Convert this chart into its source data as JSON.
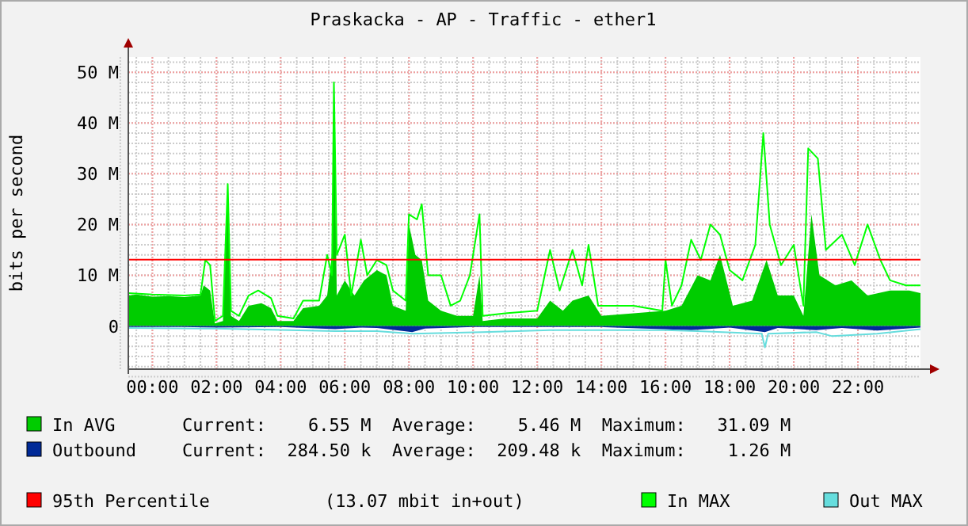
{
  "chart_data": {
    "type": "area",
    "title": "Praskacka - AP - Traffic - ether1",
    "ylabel": "bits per second",
    "xlim": [
      -0.75,
      23.95
    ],
    "xticks": [
      {
        "value": 0,
        "label": "00:00"
      },
      {
        "value": 2,
        "label": "02:00"
      },
      {
        "value": 4,
        "label": "04:00"
      },
      {
        "value": 6,
        "label": "06:00"
      },
      {
        "value": 8,
        "label": "08:00"
      },
      {
        "value": 10,
        "label": "10:00"
      },
      {
        "value": 12,
        "label": "12:00"
      },
      {
        "value": 14,
        "label": "14:00"
      },
      {
        "value": 16,
        "label": "16:00"
      },
      {
        "value": 18,
        "label": "18:00"
      },
      {
        "value": 20,
        "label": "20:00"
      },
      {
        "value": 22,
        "label": "22:00"
      }
    ],
    "ylim": [
      -8.5,
      53
    ],
    "yticks": [
      0,
      {
        "value": 10,
        "label": "10 M"
      },
      {
        "value": 20,
        "label": "20 M"
      },
      {
        "value": 30,
        "label": "30 M"
      },
      {
        "value": 40,
        "label": "40 M"
      },
      {
        "value": 50,
        "label": "50 M"
      }
    ],
    "grid": true,
    "legend": "bottom",
    "series": [
      {
        "name": "In AVG",
        "color": "#00cc00",
        "x": [
          -0.75,
          -0.5,
          0,
          0.5,
          1,
          1.5,
          1.6,
          1.8,
          1.95,
          2.2,
          2.35,
          2.45,
          2.7,
          3.0,
          3.4,
          3.7,
          3.9,
          4.4,
          4.7,
          5.2,
          5.45,
          5.6,
          5.66,
          5.75,
          6.0,
          6.3,
          6.6,
          7.0,
          7.3,
          7.5,
          7.9,
          8.0,
          8.2,
          8.4,
          8.6,
          9.0,
          9.5,
          10.0,
          10.2,
          10.3,
          11.0,
          12.0,
          12.4,
          12.8,
          13.1,
          13.6,
          14.0,
          15.0,
          16.0,
          16.5,
          17.0,
          17.4,
          17.7,
          18.1,
          18.7,
          19.15,
          19.5,
          20.0,
          20.3,
          20.55,
          20.8,
          21.3,
          21.8,
          22.3,
          23.0,
          23.6,
          23.95
        ],
        "values": [
          6,
          6.2,
          5.8,
          5.9,
          5.7,
          6,
          8,
          7,
          0.5,
          1,
          28,
          2,
          1,
          4,
          4.5,
          3.5,
          1,
          1,
          3.5,
          4,
          6,
          14,
          48,
          6,
          9,
          6,
          9,
          11,
          10,
          4,
          3,
          20,
          14,
          13,
          5,
          3,
          2,
          2,
          10,
          1,
          1.5,
          1.5,
          5,
          3,
          5,
          6,
          2,
          2.5,
          3,
          4,
          10,
          9,
          14,
          4,
          5,
          13,
          6,
          6,
          2,
          22,
          10,
          8,
          9,
          6,
          7,
          7,
          6.5
        ]
      },
      {
        "name": "Outbound",
        "color": "#002a97",
        "x": [
          -0.75,
          1,
          2,
          4,
          5.7,
          6.5,
          7.0,
          8.1,
          8.5,
          10,
          12,
          14,
          16.8,
          18,
          19.1,
          19.5,
          20.7,
          21.5,
          22.6,
          23.95
        ],
        "values": [
          -0.2,
          -0.2,
          -0.3,
          -0.2,
          -0.6,
          -0.3,
          -0.4,
          -1.2,
          -0.5,
          -0.2,
          -0.2,
          -0.2,
          -0.8,
          -0.3,
          -1.2,
          -0.4,
          -0.8,
          -0.4,
          -0.9,
          -0.3
        ]
      },
      {
        "name": "In MAX",
        "type": "line",
        "color": "#00ff00",
        "x": [
          -0.75,
          0,
          1,
          1.5,
          1.65,
          1.8,
          1.95,
          2.2,
          2.35,
          2.45,
          2.7,
          3.0,
          3.3,
          3.7,
          3.9,
          4.4,
          4.7,
          5.2,
          5.45,
          5.6,
          5.66,
          5.75,
          6.0,
          6.2,
          6.5,
          6.7,
          7.0,
          7.3,
          7.5,
          7.9,
          8.0,
          8.25,
          8.4,
          8.6,
          9.0,
          9.3,
          9.6,
          9.9,
          10.2,
          10.3,
          11.0,
          12.0,
          12.4,
          12.7,
          13.1,
          13.4,
          13.6,
          13.9,
          15.0,
          15.9,
          16.0,
          16.2,
          16.5,
          16.8,
          17.1,
          17.4,
          17.7,
          18.0,
          18.4,
          18.8,
          19.05,
          19.25,
          19.6,
          20.0,
          20.3,
          20.45,
          20.75,
          21.0,
          21.5,
          21.9,
          22.3,
          22.7,
          23.0,
          23.5,
          23.95
        ],
        "values": [
          6.5,
          6.2,
          6,
          6.2,
          13,
          12,
          1,
          2,
          28,
          3,
          2,
          6,
          7,
          5.5,
          2,
          1.5,
          5,
          5,
          14,
          10,
          48,
          14,
          18,
          6,
          17,
          10,
          13,
          12,
          7,
          5,
          22,
          21,
          24,
          10,
          10,
          4,
          5,
          10,
          22,
          2,
          2.5,
          3,
          15,
          7,
          15,
          8,
          16,
          4,
          4,
          3,
          13,
          4,
          8,
          17,
          13,
          20,
          18,
          11,
          9,
          16,
          38,
          20,
          12,
          16,
          4,
          35,
          33,
          15,
          18,
          12,
          20,
          13,
          9,
          8,
          8
        ]
      },
      {
        "name": "Out MAX",
        "type": "line",
        "color": "#66dddd",
        "x": [
          -0.75,
          2,
          5.7,
          7.0,
          8.1,
          10.3,
          12.4,
          16,
          17.0,
          19.0,
          19.1,
          19.2,
          20.7,
          21.2,
          22.6,
          23.95
        ],
        "values": [
          -0.4,
          -0.5,
          -1,
          -1,
          -1.5,
          -1.2,
          -0.8,
          -0.8,
          -1,
          -1.5,
          -4.2,
          -1.5,
          -1.2,
          -2,
          -1.5,
          -0.6
        ]
      }
    ],
    "ref_lines": [
      {
        "axis": "y",
        "value": 13.07,
        "label": "95th Percentile",
        "color": "#ff0000"
      }
    ],
    "annotations": [
      "Current:    6.55 M  Average:    5.46 M  Maximum:   31.09 M",
      "Current:  284.50 k  Average:  209.48 k  Maximum:    1.26 M",
      "(13.07 mbit in+out)"
    ]
  }
}
